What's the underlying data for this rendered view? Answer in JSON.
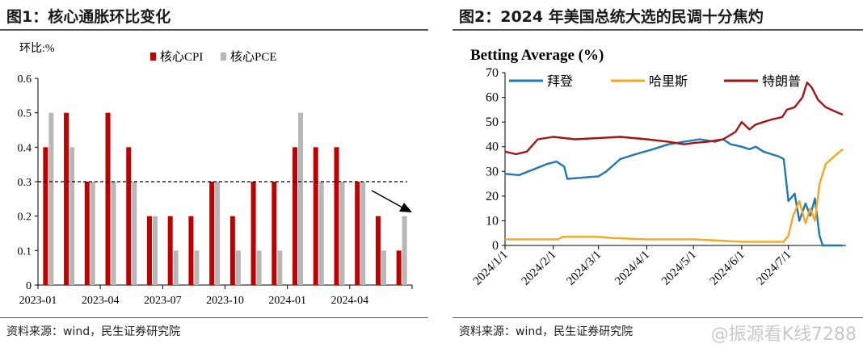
{
  "left": {
    "title": "图1：核心通胀环比变化",
    "source": "资料来源：wind，民生证券研究院",
    "ylabel": "环比:%"
  },
  "right": {
    "title": "图2：2024 年美国总统大选的民调十分焦灼",
    "source": "资料来源：wind，民生证券研究院",
    "chart_title": "Betting Average (%)"
  },
  "watermark": "@振源看K线7288",
  "chart_data": [
    {
      "type": "bar",
      "title": "",
      "ylabel": "环比:%",
      "ylim": [
        0,
        0.6
      ],
      "yticks": [
        "0",
        "0.1",
        "0.2",
        "0.3",
        "0.4",
        "0.5",
        "0.6"
      ],
      "categories": [
        "2023-01",
        "2023-02",
        "2023-03",
        "2023-04",
        "2023-05",
        "2023-06",
        "2023-07",
        "2023-08",
        "2023-09",
        "2023-10",
        "2023-11",
        "2023-12",
        "2024-01",
        "2024-02",
        "2024-03",
        "2024-04",
        "2024-05",
        "2024-06"
      ],
      "xtick_labels": [
        "2023-01",
        "2023-04",
        "2023-07",
        "2023-10",
        "2024-01",
        "2024-04"
      ],
      "series": [
        {
          "name": "核心CPI",
          "color": "#c00000",
          "values": [
            0.4,
            0.5,
            0.3,
            0.5,
            0.4,
            0.2,
            0.2,
            0.2,
            0.3,
            0.2,
            0.3,
            0.3,
            0.4,
            0.4,
            0.4,
            0.3,
            0.2,
            0.1
          ]
        },
        {
          "name": "核心PCE",
          "color": "#b7b7b7",
          "values": [
            0.5,
            0.4,
            0.3,
            0.3,
            0.3,
            0.2,
            0.1,
            0.1,
            0.3,
            0.1,
            0.1,
            0.1,
            0.5,
            0.3,
            0.3,
            0.3,
            0.1,
            0.2
          ]
        }
      ],
      "reference_line": 0.3,
      "legend": "top-center"
    },
    {
      "type": "line",
      "title": "Betting Average (%)",
      "ylim": [
        0,
        70
      ],
      "yticks": [
        "0",
        "10",
        "20",
        "30",
        "40",
        "50",
        "60",
        "70"
      ],
      "xlim": [
        "2024-01-01",
        "2024-08-07"
      ],
      "xtick_labels": [
        "2024/1/1",
        "2024/2/1",
        "2024/3/1",
        "2024/4/1",
        "2024/5/1",
        "2024/6/1",
        "2024/7/1"
      ],
      "xticks": [
        "2024-01-01",
        "2024-02-01",
        "2024-03-01",
        "2024-04-01",
        "2024-05-01",
        "2024-06-01",
        "2024-07-01"
      ],
      "legend": "top",
      "series": [
        {
          "name": "拜登",
          "color": "#1f77b4",
          "points": [
            [
              "2024-01-01",
              29
            ],
            [
              "2024-01-10",
              28.5
            ],
            [
              "2024-01-20",
              31
            ],
            [
              "2024-01-28",
              33
            ],
            [
              "2024-02-03",
              34
            ],
            [
              "2024-02-08",
              32
            ],
            [
              "2024-02-10",
              27
            ],
            [
              "2024-02-20",
              27.5
            ],
            [
              "2024-03-01",
              28
            ],
            [
              "2024-03-06",
              30
            ],
            [
              "2024-03-15",
              35
            ],
            [
              "2024-03-25",
              37
            ],
            [
              "2024-04-05",
              39
            ],
            [
              "2024-04-15",
              41
            ],
            [
              "2024-04-25",
              42
            ],
            [
              "2024-05-05",
              43
            ],
            [
              "2024-05-15",
              42
            ],
            [
              "2024-05-20",
              43
            ],
            [
              "2024-05-25",
              41
            ],
            [
              "2024-06-01",
              40
            ],
            [
              "2024-06-06",
              39
            ],
            [
              "2024-06-10",
              40
            ],
            [
              "2024-06-15",
              38
            ],
            [
              "2024-06-25",
              36
            ],
            [
              "2024-06-28",
              35
            ],
            [
              "2024-07-01",
              18
            ],
            [
              "2024-07-05",
              21
            ],
            [
              "2024-07-08",
              10
            ],
            [
              "2024-07-12",
              17
            ],
            [
              "2024-07-15",
              12
            ],
            [
              "2024-07-18",
              19
            ],
            [
              "2024-07-21",
              4
            ],
            [
              "2024-07-23",
              0
            ],
            [
              "2024-08-05",
              0
            ]
          ]
        },
        {
          "name": "哈里斯",
          "color": "#f5a623",
          "points": [
            [
              "2024-01-01",
              2.5
            ],
            [
              "2024-01-20",
              2.5
            ],
            [
              "2024-02-04",
              2.5
            ],
            [
              "2024-02-07",
              3.5
            ],
            [
              "2024-03-01",
              3.5
            ],
            [
              "2024-03-10",
              3
            ],
            [
              "2024-04-01",
              2.5
            ],
            [
              "2024-05-01",
              2.5
            ],
            [
              "2024-06-01",
              1.5
            ],
            [
              "2024-06-28",
              1.5
            ],
            [
              "2024-07-01",
              4
            ],
            [
              "2024-07-04",
              12
            ],
            [
              "2024-07-08",
              18
            ],
            [
              "2024-07-12",
              9
            ],
            [
              "2024-07-15",
              15
            ],
            [
              "2024-07-18",
              10
            ],
            [
              "2024-07-21",
              25
            ],
            [
              "2024-07-25",
              33
            ],
            [
              "2024-08-01",
              37
            ],
            [
              "2024-08-05",
              39
            ]
          ]
        },
        {
          "name": "特朗普",
          "color": "#a31515",
          "points": [
            [
              "2024-01-01",
              38
            ],
            [
              "2024-01-08",
              37
            ],
            [
              "2024-01-15",
              38
            ],
            [
              "2024-01-22",
              43
            ],
            [
              "2024-02-01",
              44
            ],
            [
              "2024-02-15",
              43
            ],
            [
              "2024-03-01",
              43.5
            ],
            [
              "2024-03-15",
              44
            ],
            [
              "2024-04-01",
              43
            ],
            [
              "2024-04-15",
              42
            ],
            [
              "2024-04-25",
              41
            ],
            [
              "2024-05-01",
              41.5
            ],
            [
              "2024-05-10",
              42
            ],
            [
              "2024-05-20",
              43
            ],
            [
              "2024-05-28",
              46
            ],
            [
              "2024-06-01",
              50
            ],
            [
              "2024-06-06",
              47
            ],
            [
              "2024-06-10",
              49
            ],
            [
              "2024-06-20",
              51
            ],
            [
              "2024-06-27",
              52
            ],
            [
              "2024-06-30",
              55
            ],
            [
              "2024-07-05",
              56
            ],
            [
              "2024-07-10",
              60
            ],
            [
              "2024-07-13",
              66
            ],
            [
              "2024-07-16",
              64
            ],
            [
              "2024-07-20",
              59
            ],
            [
              "2024-07-25",
              56
            ],
            [
              "2024-08-01",
              54
            ],
            [
              "2024-08-05",
              53
            ]
          ]
        }
      ]
    }
  ]
}
